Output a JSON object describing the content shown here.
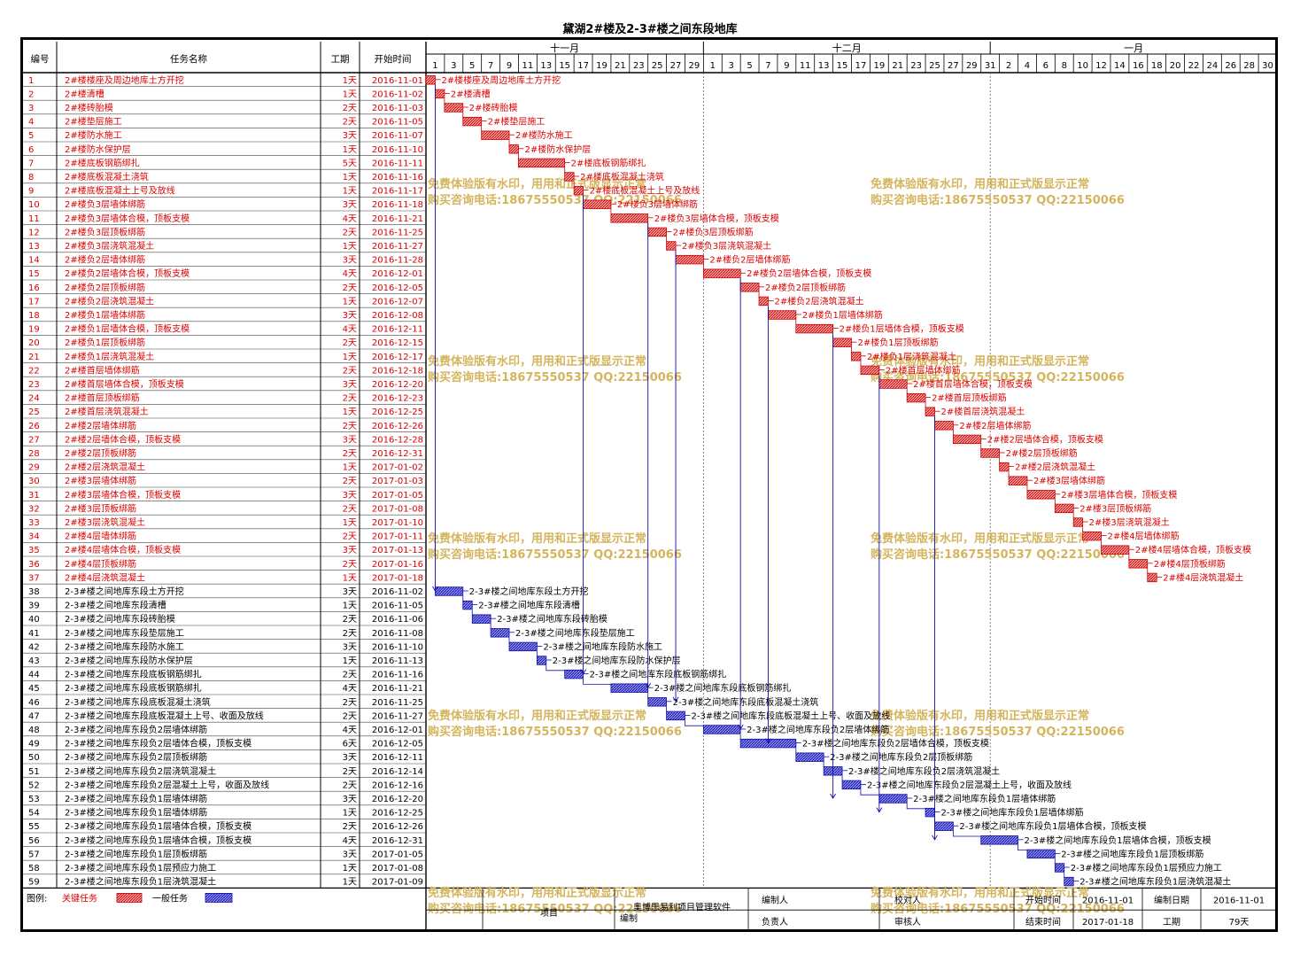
{
  "title": "黛湖2#楼及2-3#楼之间东段地库",
  "headers": {
    "id": "编号",
    "name": "任务名称",
    "duration": "工期",
    "start": "开始时间"
  },
  "months": [
    {
      "label": "十一月",
      "start_index": 0
    },
    {
      "label": "十二月",
      "start_index": 15
    },
    {
      "label": "一月",
      "start_index": 30
    }
  ],
  "day_labels": [
    "1",
    "3",
    "5",
    "7",
    "9",
    "11",
    "13",
    "15",
    "17",
    "19",
    "21",
    "23",
    "25",
    "27",
    "29",
    "1",
    "3",
    "5",
    "7",
    "9",
    "11",
    "13",
    "15",
    "17",
    "19",
    "21",
    "23",
    "25",
    "27",
    "29",
    "31",
    "2",
    "4",
    "6",
    "8",
    "10",
    "12",
    "14",
    "16",
    "18",
    "20",
    "22",
    "24",
    "26",
    "28",
    "30"
  ],
  "watermark": {
    "line1": "免费体验版有水印，用用和正式版显示正常",
    "line2": "购买咨询电话:18675550537 QQ:22150066"
  },
  "footer": {
    "legend_label": "图例:",
    "critical_label": "关键任务",
    "normal_label": "一般任务",
    "project_label": "项目",
    "software_label": "奥博思易利项目管理软件",
    "compile_label": "编制",
    "editor_label": "编制人",
    "responsible_label": "负责人",
    "reviewer_label": "校对人",
    "auditor_label": "审核人",
    "start_label": "开始时间",
    "start_value": "2016-11-01",
    "end_label": "结束时间",
    "end_value": "2017-01-18",
    "date_label": "编制日期",
    "date_value": "2016-11-01",
    "duration_label": "工期",
    "duration_value": "79天"
  },
  "colors": {
    "critical": "#cc0000",
    "critical_text": "#dd0000",
    "normal": "#1010aa",
    "normal_fill": "#3333cc",
    "watermark": "#d4b45c"
  },
  "chart_data": {
    "type": "gantt",
    "title": "黛湖2#楼及2-3#楼之间东段地库",
    "timeline_start": "2016-11-01",
    "timeline_end": "2017-01-31",
    "tasks": [
      {
        "id": "1",
        "name": "2#楼楼座及周边地库土方开挖",
        "duration": "1天",
        "start": "2016-11-01",
        "critical": true
      },
      {
        "id": "2",
        "name": "2#楼清槽",
        "duration": "1天",
        "start": "2016-11-02",
        "critical": true
      },
      {
        "id": "3",
        "name": "2#楼砖胎模",
        "duration": "2天",
        "start": "2016-11-03",
        "critical": true
      },
      {
        "id": "4",
        "name": "2#楼垫层施工",
        "duration": "2天",
        "start": "2016-11-05",
        "critical": true
      },
      {
        "id": "5",
        "name": "2#楼防水施工",
        "duration": "3天",
        "start": "2016-11-07",
        "critical": true
      },
      {
        "id": "6",
        "name": "2#楼防水保护层",
        "duration": "1天",
        "start": "2016-11-10",
        "critical": true
      },
      {
        "id": "7",
        "name": "2#楼底板钢筋绑扎",
        "duration": "5天",
        "start": "2016-11-11",
        "critical": true
      },
      {
        "id": "8",
        "name": "2#楼底板混凝土浇筑",
        "duration": "1天",
        "start": "2016-11-16",
        "critical": true
      },
      {
        "id": "9",
        "name": "2#楼底板混凝土上号及放线",
        "duration": "1天",
        "start": "2016-11-17",
        "critical": true
      },
      {
        "id": "10",
        "name": "2#楼负3层墙体绑筋",
        "duration": "3天",
        "start": "2016-11-18",
        "critical": true
      },
      {
        "id": "11",
        "name": "2#楼负3层墙体合模，顶板支模",
        "duration": "4天",
        "start": "2016-11-21",
        "critical": true
      },
      {
        "id": "12",
        "name": "2#楼负3层顶板绑筋",
        "duration": "2天",
        "start": "2016-11-25",
        "critical": true
      },
      {
        "id": "13",
        "name": "2#楼负3层浇筑混凝土",
        "duration": "1天",
        "start": "2016-11-27",
        "critical": true
      },
      {
        "id": "14",
        "name": "2#楼负2层墙体绑筋",
        "duration": "3天",
        "start": "2016-11-28",
        "critical": true
      },
      {
        "id": "15",
        "name": "2#楼负2层墙体合模，顶板支模",
        "duration": "4天",
        "start": "2016-12-01",
        "critical": true
      },
      {
        "id": "16",
        "name": "2#楼负2层顶板绑筋",
        "duration": "2天",
        "start": "2016-12-05",
        "critical": true
      },
      {
        "id": "17",
        "name": "2#楼负2层浇筑混凝土",
        "duration": "1天",
        "start": "2016-12-07",
        "critical": true
      },
      {
        "id": "18",
        "name": "2#楼负1层墙体绑筋",
        "duration": "3天",
        "start": "2016-12-08",
        "critical": true
      },
      {
        "id": "19",
        "name": "2#楼负1层墙体合模，顶板支模",
        "duration": "4天",
        "start": "2016-12-11",
        "critical": true
      },
      {
        "id": "20",
        "name": "2#楼负1层顶板绑筋",
        "duration": "2天",
        "start": "2016-12-15",
        "critical": true
      },
      {
        "id": "21",
        "name": "2#楼负1层浇筑混凝土",
        "duration": "1天",
        "start": "2016-12-17",
        "critical": true
      },
      {
        "id": "22",
        "name": "2#楼首层墙体绑筋",
        "duration": "2天",
        "start": "2016-12-18",
        "critical": true
      },
      {
        "id": "23",
        "name": "2#楼首层墙体合模，顶板支模",
        "duration": "3天",
        "start": "2016-12-20",
        "critical": true
      },
      {
        "id": "24",
        "name": "2#楼首层顶板绑筋",
        "duration": "2天",
        "start": "2016-12-23",
        "critical": true
      },
      {
        "id": "25",
        "name": "2#楼首层浇筑混凝土",
        "duration": "1天",
        "start": "2016-12-25",
        "critical": true
      },
      {
        "id": "26",
        "name": "2#楼2层墙体绑筋",
        "duration": "2天",
        "start": "2016-12-26",
        "critical": true
      },
      {
        "id": "27",
        "name": "2#楼2层墙体合模，顶板支模",
        "duration": "3天",
        "start": "2016-12-28",
        "critical": true
      },
      {
        "id": "28",
        "name": "2#楼2层顶板绑筋",
        "duration": "2天",
        "start": "2016-12-31",
        "critical": true
      },
      {
        "id": "29",
        "name": "2#楼2层浇筑混凝土",
        "duration": "1天",
        "start": "2017-01-02",
        "critical": true
      },
      {
        "id": "30",
        "name": "2#楼3层墙体绑筋",
        "duration": "2天",
        "start": "2017-01-03",
        "critical": true
      },
      {
        "id": "31",
        "name": "2#楼3层墙体合模，顶板支模",
        "duration": "3天",
        "start": "2017-01-05",
        "critical": true
      },
      {
        "id": "32",
        "name": "2#楼3层顶板绑筋",
        "duration": "2天",
        "start": "2017-01-08",
        "critical": true
      },
      {
        "id": "33",
        "name": "2#楼3层浇筑混凝土",
        "duration": "1天",
        "start": "2017-01-10",
        "critical": true
      },
      {
        "id": "34",
        "name": "2#楼4层墙体绑筋",
        "duration": "2天",
        "start": "2017-01-11",
        "critical": true
      },
      {
        "id": "35",
        "name": "2#楼4层墙体合模，顶板支模",
        "duration": "3天",
        "start": "2017-01-13",
        "critical": true
      },
      {
        "id": "36",
        "name": "2#楼4层顶板绑筋",
        "duration": "2天",
        "start": "2017-01-16",
        "critical": true
      },
      {
        "id": "37",
        "name": "2#楼4层浇筑混凝土",
        "duration": "1天",
        "start": "2017-01-18",
        "critical": true
      },
      {
        "id": "38",
        "name": "2-3#楼之间地库东段土方开挖",
        "duration": "3天",
        "start": "2016-11-02",
        "critical": false
      },
      {
        "id": "39",
        "name": "2-3#楼之间地库东段清槽",
        "duration": "1天",
        "start": "2016-11-05",
        "critical": false
      },
      {
        "id": "40",
        "name": "2-3#楼之间地库东段砖胎模",
        "duration": "2天",
        "start": "2016-11-06",
        "critical": false
      },
      {
        "id": "41",
        "name": "2-3#楼之间地库东段垫层施工",
        "duration": "2天",
        "start": "2016-11-08",
        "critical": false
      },
      {
        "id": "42",
        "name": "2-3#楼之间地库东段防水施工",
        "duration": "3天",
        "start": "2016-11-10",
        "critical": false
      },
      {
        "id": "43",
        "name": "2-3#楼之间地库东段防水保护层",
        "duration": "1天",
        "start": "2016-11-13",
        "critical": false
      },
      {
        "id": "44",
        "name": "2-3#楼之间地库东段底板钢筋绑扎",
        "duration": "2天",
        "start": "2016-11-16",
        "critical": false
      },
      {
        "id": "45",
        "name": "2-3#楼之间地库东段底板钢筋绑扎",
        "duration": "4天",
        "start": "2016-11-21",
        "critical": false
      },
      {
        "id": "46",
        "name": "2-3#楼之间地库东段底板混凝土浇筑",
        "duration": "2天",
        "start": "2016-11-25",
        "critical": false
      },
      {
        "id": "47",
        "name": "2-3#楼之间地库东段底板混凝土上号、收面及放线",
        "duration": "2天",
        "start": "2016-11-27",
        "critical": false
      },
      {
        "id": "48",
        "name": "2-3#楼之间地库东段负2层墙体绑筋",
        "duration": "4天",
        "start": "2016-12-01",
        "critical": false
      },
      {
        "id": "49",
        "name": "2-3#楼之间地库东段负2层墙体合模，顶板支模",
        "duration": "6天",
        "start": "2016-12-05",
        "critical": false
      },
      {
        "id": "50",
        "name": "2-3#楼之间地库东段负2层顶板绑筋",
        "duration": "3天",
        "start": "2016-12-11",
        "critical": false
      },
      {
        "id": "51",
        "name": "2-3#楼之间地库东段负2层浇筑混凝土",
        "duration": "2天",
        "start": "2016-12-14",
        "critical": false
      },
      {
        "id": "52",
        "name": "2-3#楼之间地库东段负2层混凝土上号，收面及放线",
        "duration": "2天",
        "start": "2016-12-16",
        "critical": false
      },
      {
        "id": "53",
        "name": "2-3#楼之间地库东段负1层墙体绑筋",
        "duration": "3天",
        "start": "2016-12-20",
        "critical": false
      },
      {
        "id": "54",
        "name": "2-3#楼之间地库东段负1层墙体绑筋",
        "duration": "1天",
        "start": "2016-12-25",
        "critical": false
      },
      {
        "id": "55",
        "name": "2-3#楼之间地库东段负1层墙体合模，顶板支模",
        "duration": "2天",
        "start": "2016-12-26",
        "critical": false
      },
      {
        "id": "56",
        "name": "2-3#楼之间地库东段负1层墙体合模，顶板支模",
        "duration": "4天",
        "start": "2016-12-31",
        "critical": false
      },
      {
        "id": "57",
        "name": "2-3#楼之间地库东段负1层顶板绑筋",
        "duration": "3天",
        "start": "2017-01-05",
        "critical": false
      },
      {
        "id": "58",
        "name": "2-3#楼之间地库东段负1层预应力施工",
        "duration": "1天",
        "start": "2017-01-08",
        "critical": false
      },
      {
        "id": "59",
        "name": "2-3#楼之间地库东段负1层浇筑混凝土",
        "duration": "1天",
        "start": "2017-01-09",
        "critical": false
      }
    ]
  }
}
